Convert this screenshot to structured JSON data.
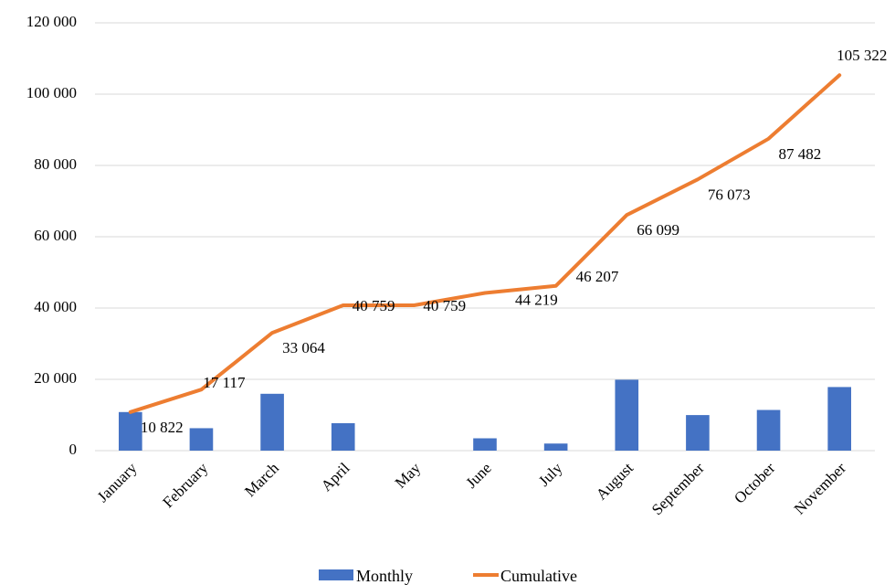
{
  "chart_data": {
    "type": "bar",
    "categories": [
      "January",
      "February",
      "March",
      "April",
      "May",
      "June",
      "July",
      "August",
      "September",
      "October",
      "November"
    ],
    "series": [
      {
        "name": "Monthly",
        "type": "bar",
        "color": "#4472C4",
        "values": [
          10822,
          6295,
          15947,
          7695,
          0,
          3460,
          1988,
          19892,
          9974,
          11409,
          17840
        ]
      },
      {
        "name": "Cumulative",
        "type": "line",
        "color": "#ED7D31",
        "values": [
          10822,
          17117,
          33064,
          40759,
          40759,
          44219,
          46207,
          66099,
          76073,
          87482,
          105322
        ],
        "labels": [
          "10 822",
          "17 117",
          "33 064",
          "40 759",
          "40 759",
          "44 219",
          "46 207",
          "66 099",
          "76 073",
          "87 482",
          "105 322"
        ]
      }
    ],
    "yticks": [
      0,
      20000,
      40000,
      60000,
      80000,
      100000,
      120000
    ],
    "ytick_labels": [
      "0",
      "20 000",
      "40 000",
      "60 000",
      "80 000",
      "100 000",
      "120 000"
    ],
    "ylim": [
      0,
      120000
    ],
    "grid": true,
    "legend_position": "bottom"
  }
}
